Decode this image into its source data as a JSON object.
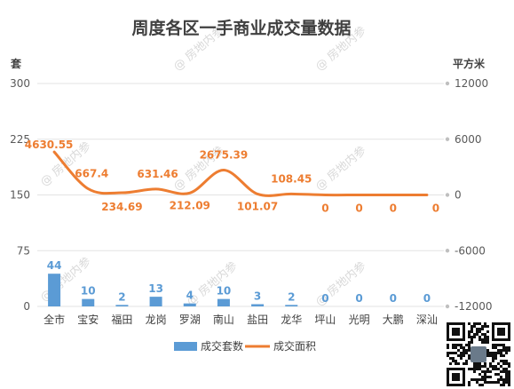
{
  "chart_data": {
    "type": "bar+line",
    "title": "周度各区一手商业成交量数据",
    "y_left_unit": "套",
    "y_right_unit": "平方米",
    "categories": [
      "全市",
      "宝安",
      "福田",
      "龙岗",
      "罗湖",
      "南山",
      "盐田",
      "龙华",
      "坪山",
      "光明",
      "大鹏",
      "深汕"
    ],
    "y_left": {
      "min": 0,
      "max": 300,
      "ticks": [
        0,
        75,
        150,
        225,
        300
      ]
    },
    "y_right": {
      "min": -12000,
      "max": 12000,
      "ticks": [
        -12000,
        -6000,
        0,
        6000,
        12000
      ]
    },
    "series": [
      {
        "name": "成交套数",
        "type": "bar",
        "axis": "left",
        "color": "#5b9bd5",
        "values": [
          44,
          10,
          2,
          13,
          4,
          10,
          3,
          2,
          0,
          0,
          0,
          0
        ],
        "labels": [
          "44",
          "10",
          "2",
          "13",
          "4",
          "10",
          "3",
          "2",
          "0",
          "0",
          "0",
          "0"
        ]
      },
      {
        "name": "成交面积",
        "type": "line",
        "axis": "right",
        "color": "#ed7d31",
        "values": [
          4630.55,
          667.4,
          234.69,
          631.46,
          212.09,
          2675.39,
          101.07,
          108.45,
          0,
          0,
          0,
          0
        ],
        "labels": [
          "4630.55",
          "667.4",
          "234.69",
          "631.46",
          "212.09",
          "2675.39",
          "101.07",
          "108.45",
          "0",
          "0",
          "0",
          "0"
        ]
      }
    ],
    "legend_position": "bottom",
    "grid": true
  },
  "watermark": "@ 房地内参"
}
